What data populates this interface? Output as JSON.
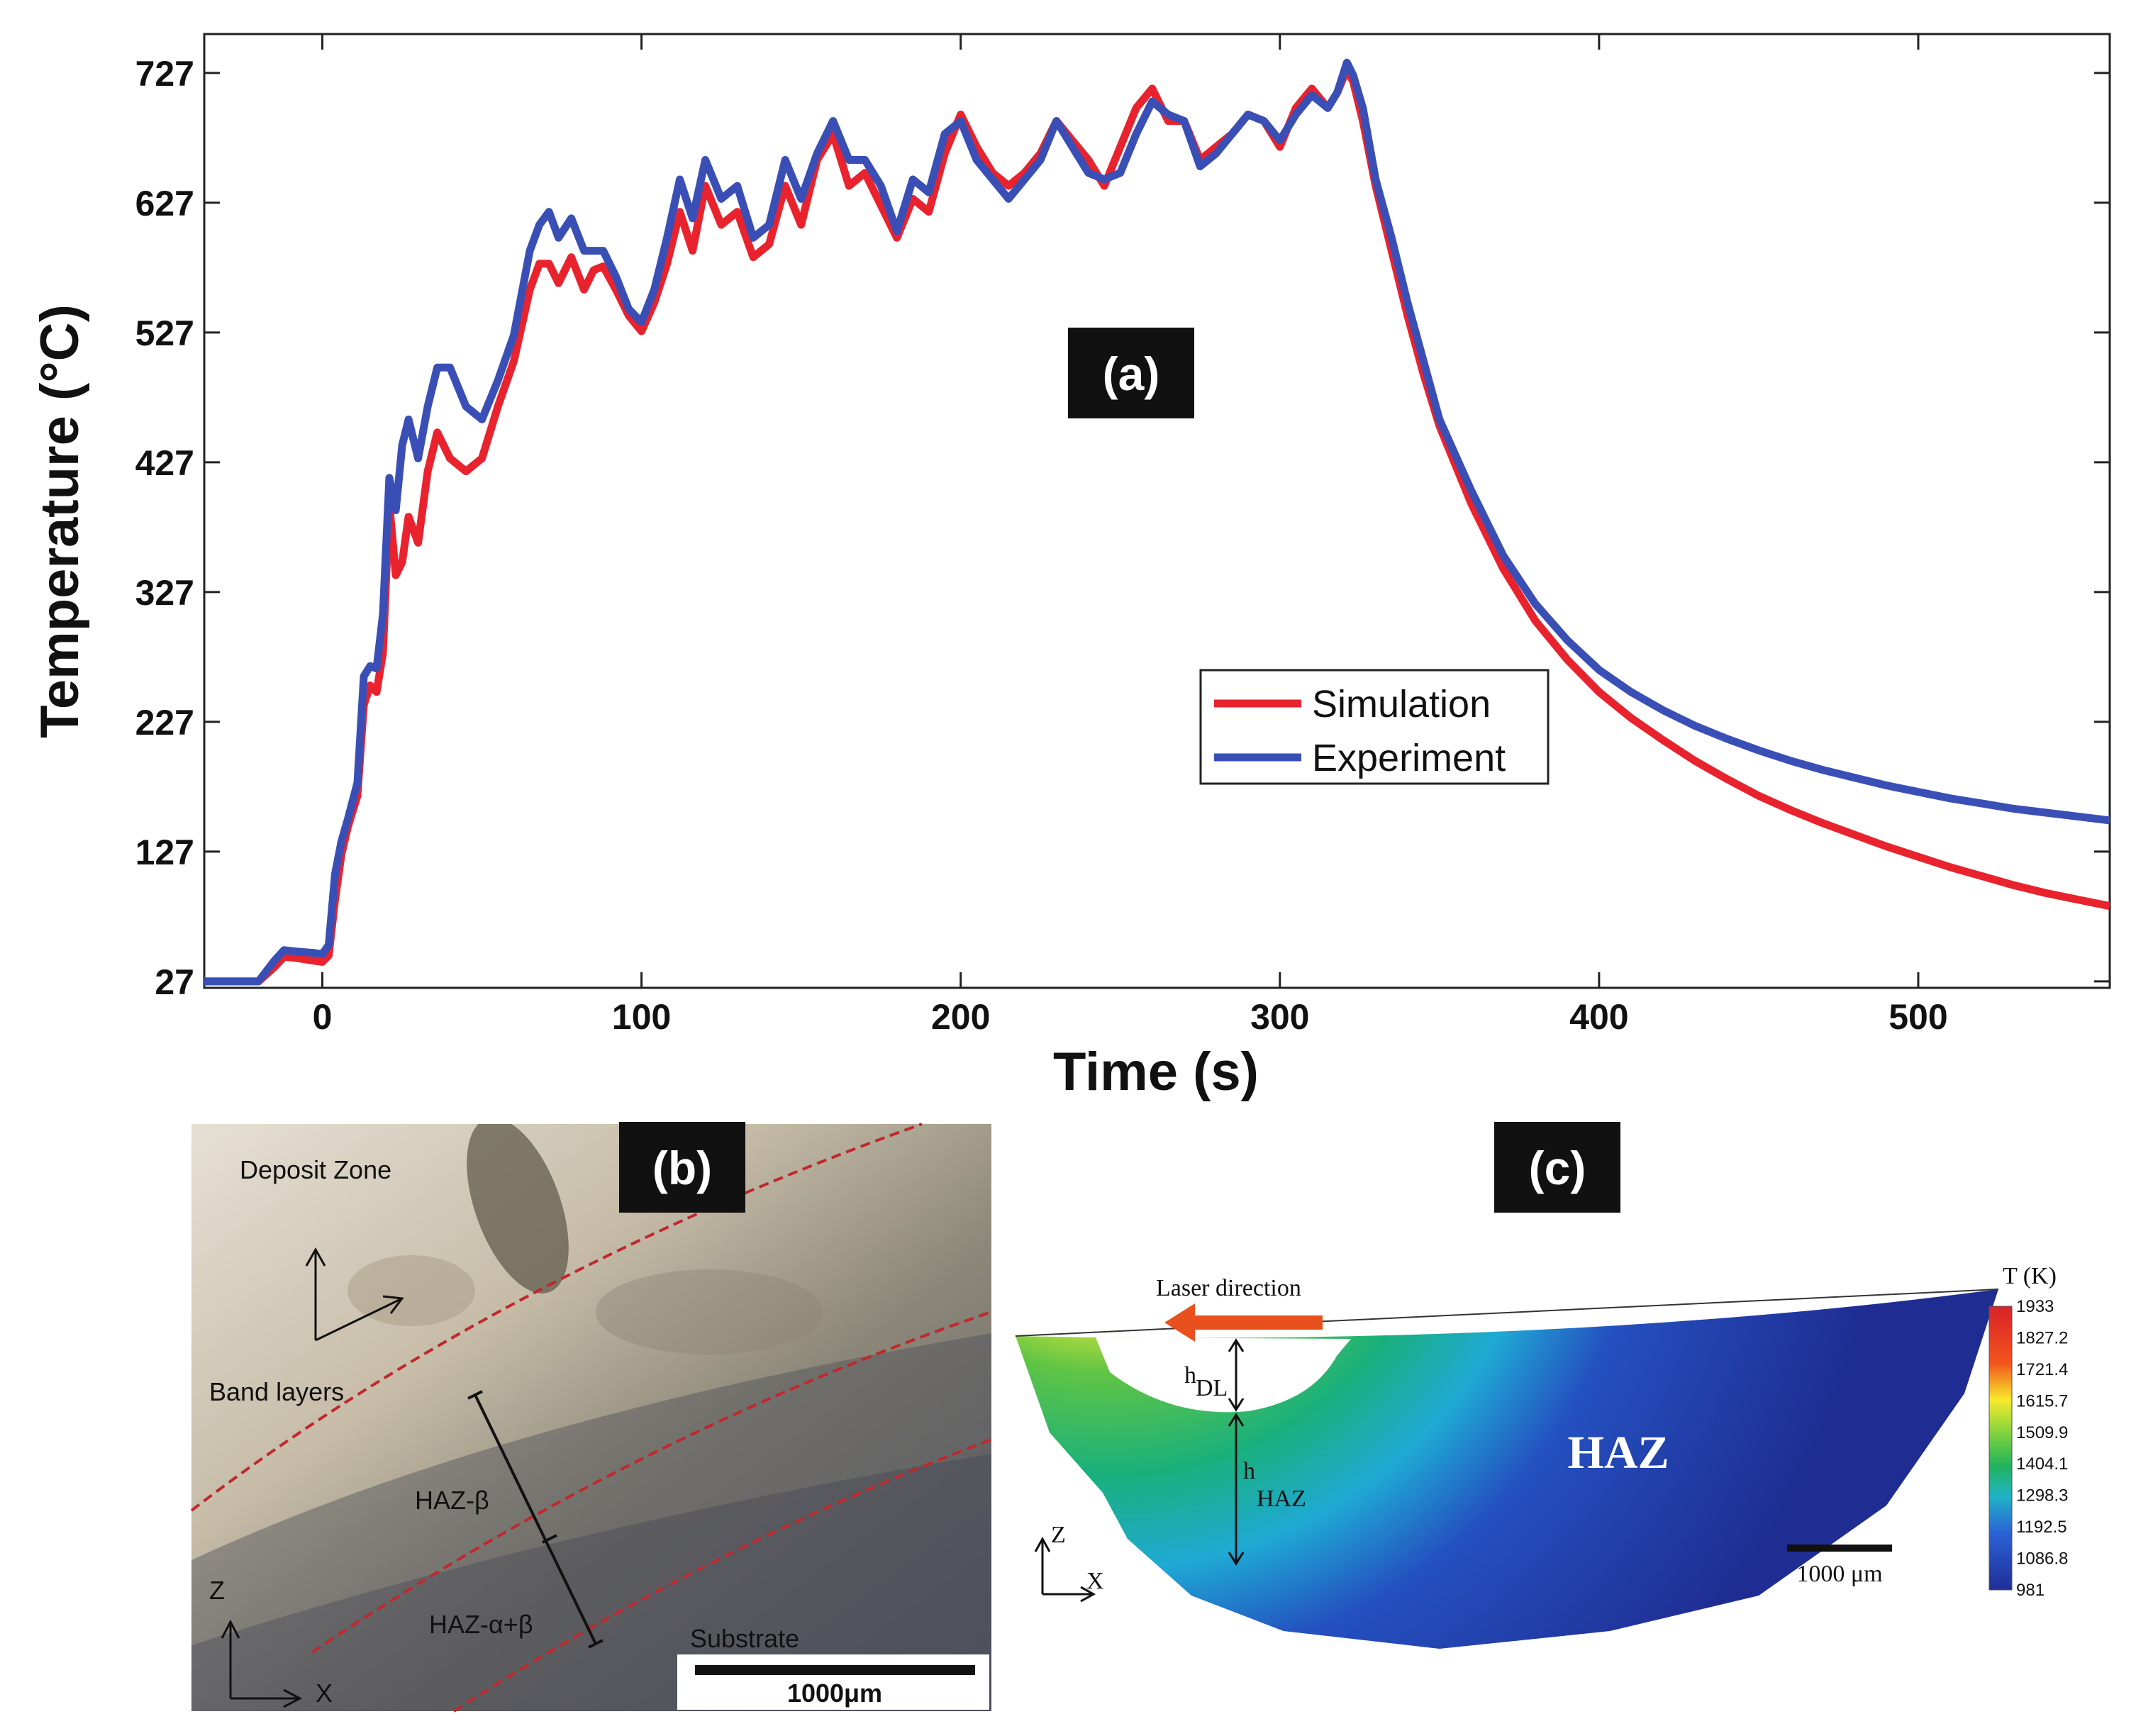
{
  "chart_data": {
    "type": "line",
    "title": "",
    "panel_label": "(a)",
    "xlabel": "Time (s)",
    "ylabel": "Temperature (°C)",
    "xlim": [
      -37,
      560
    ],
    "ylim": [
      22,
      757
    ],
    "x_ticks": [
      0,
      100,
      200,
      300,
      400,
      500
    ],
    "y_ticks": [
      27,
      127,
      227,
      327,
      427,
      527,
      627,
      727
    ],
    "legend_position": "center-right",
    "series": [
      {
        "name": "Simulation",
        "color": "#e8232e",
        "x": [
          -37,
          -20,
          -15,
          -12,
          -8,
          -3,
          0,
          2,
          4,
          6,
          8,
          11,
          13,
          15,
          17,
          19,
          21,
          23,
          25,
          27,
          30,
          33,
          36,
          40,
          45,
          50,
          55,
          60,
          65,
          68,
          71,
          74,
          78,
          82,
          85,
          88,
          92,
          96,
          100,
          104,
          108,
          112,
          116,
          120,
          125,
          130,
          135,
          140,
          145,
          150,
          155,
          160,
          165,
          170,
          175,
          180,
          185,
          190,
          195,
          200,
          205,
          210,
          215,
          220,
          225,
          230,
          235,
          240,
          245,
          250,
          255,
          260,
          265,
          270,
          275,
          280,
          285,
          290,
          295,
          300,
          305,
          310,
          315,
          318,
          321,
          323,
          326,
          330,
          335,
          340,
          345,
          350,
          360,
          370,
          380,
          390,
          400,
          410,
          420,
          430,
          440,
          450,
          460,
          470,
          480,
          490,
          500,
          510,
          520,
          530,
          540,
          550,
          560
        ],
        "values": [
          27,
          27,
          38,
          46,
          45,
          43,
          42,
          47,
          90,
          125,
          146,
          170,
          240,
          255,
          250,
          280,
          395,
          340,
          350,
          385,
          365,
          420,
          450,
          430,
          420,
          430,
          470,
          505,
          560,
          580,
          580,
          565,
          585,
          560,
          575,
          578,
          560,
          540,
          528,
          550,
          580,
          620,
          590,
          640,
          610,
          620,
          585,
          595,
          640,
          610,
          660,
          680,
          640,
          650,
          625,
          600,
          630,
          620,
          665,
          695,
          670,
          650,
          640,
          650,
          665,
          690,
          675,
          660,
          640,
          670,
          700,
          715,
          690,
          690,
          660,
          670,
          680,
          695,
          690,
          670,
          700,
          715,
          700,
          712,
          730,
          720,
          690,
          640,
          590,
          540,
          495,
          455,
          395,
          345,
          305,
          275,
          250,
          230,
          213,
          197,
          183,
          170,
          159,
          149,
          140,
          131,
          123,
          115,
          108,
          101,
          95,
          90,
          85
        ]
      },
      {
        "name": "Experiment",
        "color": "#3a4fb5",
        "x": [
          -37,
          -20,
          -15,
          -12,
          -8,
          -3,
          0,
          2,
          4,
          6,
          8,
          11,
          13,
          15,
          17,
          19,
          21,
          23,
          25,
          27,
          30,
          33,
          36,
          40,
          45,
          50,
          55,
          60,
          65,
          68,
          71,
          74,
          78,
          82,
          85,
          88,
          92,
          96,
          100,
          104,
          108,
          112,
          116,
          120,
          125,
          130,
          135,
          140,
          145,
          150,
          155,
          160,
          165,
          170,
          175,
          180,
          185,
          190,
          195,
          200,
          205,
          210,
          215,
          220,
          225,
          230,
          235,
          240,
          245,
          250,
          255,
          260,
          265,
          270,
          275,
          280,
          285,
          290,
          295,
          300,
          305,
          310,
          315,
          318,
          321,
          323,
          326,
          330,
          335,
          340,
          345,
          350,
          360,
          370,
          380,
          390,
          400,
          410,
          420,
          430,
          440,
          450,
          460,
          470,
          480,
          490,
          500,
          510,
          520,
          530,
          540,
          550,
          560
        ],
        "values": [
          27,
          27,
          43,
          51,
          50,
          49,
          48,
          55,
          110,
          135,
          152,
          180,
          262,
          270,
          268,
          310,
          415,
          390,
          440,
          460,
          430,
          470,
          500,
          500,
          470,
          460,
          490,
          525,
          590,
          610,
          620,
          600,
          615,
          590,
          590,
          590,
          570,
          545,
          535,
          560,
          600,
          645,
          615,
          660,
          630,
          640,
          600,
          610,
          660,
          630,
          665,
          690,
          660,
          660,
          640,
          605,
          645,
          635,
          680,
          690,
          660,
          645,
          630,
          645,
          660,
          690,
          670,
          650,
          645,
          650,
          680,
          705,
          695,
          690,
          655,
          665,
          680,
          695,
          690,
          675,
          695,
          710,
          700,
          712,
          735,
          725,
          700,
          645,
          600,
          550,
          505,
          460,
          405,
          355,
          318,
          290,
          267,
          250,
          236,
          224,
          214,
          205,
          197,
          190,
          184,
          178,
          173,
          168,
          164,
          160,
          157,
          154,
          151
        ]
      }
    ]
  },
  "panel_b": {
    "label": "(b)",
    "deposit_zone": "Deposit Zone",
    "band_layers": "Band layers",
    "haz_beta": "HAZ-β",
    "haz_alpha_beta": "HAZ-α+β",
    "substrate": "Substrate",
    "scale_bar": "1000μm",
    "axis_z": "Z",
    "axis_x": "X"
  },
  "panel_c": {
    "label": "(c)",
    "laser_direction": "Laser direction",
    "haz": "HAZ",
    "h_dl_main": "h",
    "h_dl_sub": "DL",
    "h_haz_main": "h",
    "h_haz_sub": "HAZ",
    "scale_bar": "1000 μm",
    "axis_z": "Z",
    "axis_x": "X",
    "colorbar_title": "T (K)",
    "colorbar_ticks": [
      "1933",
      "1827.2",
      "1721.4",
      "1615.7",
      "1509.9",
      "1404.1",
      "1298.3",
      "1192.5",
      "1086.8",
      "981"
    ]
  }
}
